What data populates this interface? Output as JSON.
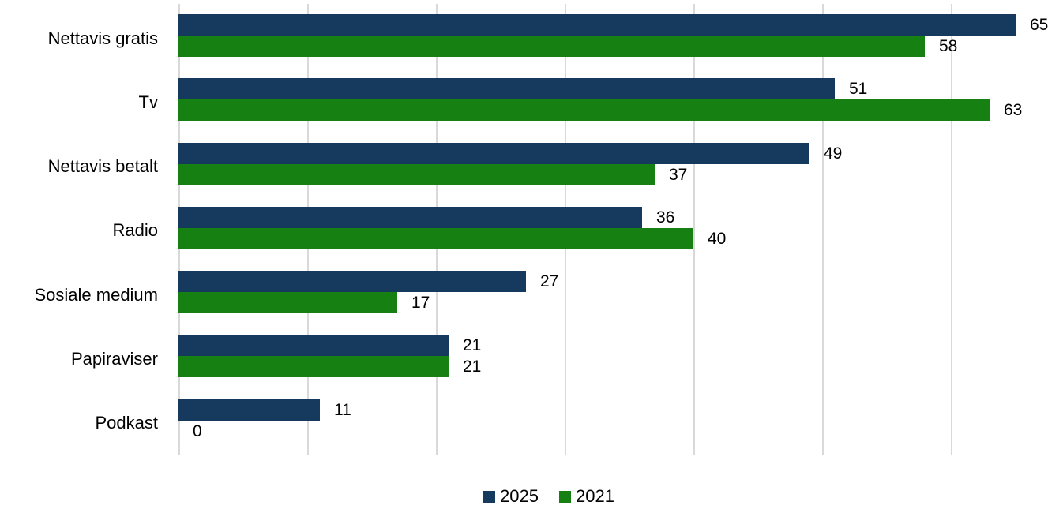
{
  "chart_data": {
    "type": "bar",
    "orientation": "horizontal",
    "title": "",
    "xlabel": "",
    "ylabel": "",
    "categories": [
      "Nettavis gratis",
      "Tv",
      "Nettavis betalt",
      "Radio",
      "Sosiale medium",
      "Papiraviser",
      "Podkast"
    ],
    "series": [
      {
        "name": "2025",
        "color": "#163A5E",
        "values": [
          65,
          51,
          49,
          36,
          27,
          21,
          11
        ]
      },
      {
        "name": "2021",
        "color": "#168013",
        "values": [
          58,
          63,
          37,
          40,
          17,
          21,
          0
        ]
      }
    ],
    "xlim": [
      0,
      67
    ],
    "gridline_step": 10,
    "gridline_max": 60,
    "grid": "on",
    "value_labels": "on",
    "legend_position": "bottom",
    "gridline_color": "#d9d9d9",
    "text_color": "#000000",
    "background_color": "#ffffff"
  }
}
